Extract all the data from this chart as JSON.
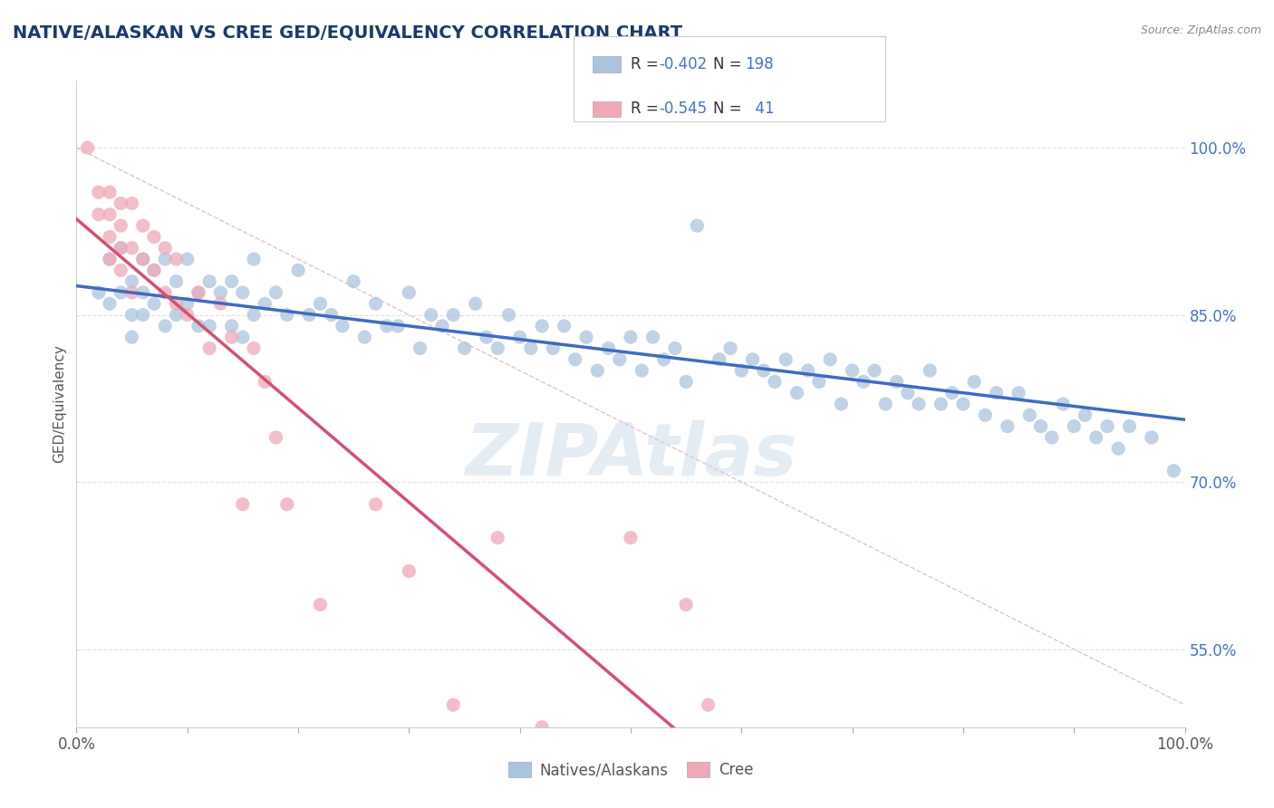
{
  "title": "NATIVE/ALASKAN VS CREE GED/EQUIVALENCY CORRELATION CHART",
  "title_color": "#1a3a6b",
  "ylabel": "GED/Equivalency",
  "source_text": "Source: ZipAtlas.com",
  "watermark": "ZIPAtlas",
  "xlim": [
    0.0,
    1.0
  ],
  "ylim": [
    0.48,
    1.06
  ],
  "y_ticks": [
    0.55,
    0.7,
    0.85,
    1.0
  ],
  "y_tick_labels": [
    "55.0%",
    "70.0%",
    "85.0%",
    "100.0%"
  ],
  "legend_r_blue": "-0.402",
  "legend_n_blue": "198",
  "legend_r_pink": "-0.545",
  "legend_n_pink": "41",
  "blue_color": "#aac4de",
  "pink_color": "#f0a8b8",
  "line_blue": "#3f6bbf",
  "line_pink": "#d45070",
  "diagonal_color": "#e0b0b8",
  "background_color": "#ffffff",
  "blue_scatter_x": [
    0.02,
    0.03,
    0.03,
    0.04,
    0.04,
    0.05,
    0.05,
    0.05,
    0.06,
    0.06,
    0.06,
    0.07,
    0.07,
    0.08,
    0.08,
    0.09,
    0.09,
    0.1,
    0.1,
    0.11,
    0.11,
    0.12,
    0.12,
    0.13,
    0.14,
    0.14,
    0.15,
    0.15,
    0.16,
    0.16,
    0.17,
    0.18,
    0.19,
    0.2,
    0.21,
    0.22,
    0.23,
    0.24,
    0.25,
    0.26,
    0.27,
    0.28,
    0.29,
    0.3,
    0.31,
    0.32,
    0.33,
    0.34,
    0.35,
    0.36,
    0.37,
    0.38,
    0.39,
    0.4,
    0.41,
    0.42,
    0.43,
    0.44,
    0.45,
    0.46,
    0.47,
    0.48,
    0.49,
    0.5,
    0.51,
    0.52,
    0.53,
    0.54,
    0.55,
    0.56,
    0.58,
    0.59,
    0.6,
    0.61,
    0.62,
    0.63,
    0.64,
    0.65,
    0.66,
    0.67,
    0.68,
    0.69,
    0.7,
    0.71,
    0.72,
    0.73,
    0.74,
    0.75,
    0.76,
    0.77,
    0.78,
    0.79,
    0.8,
    0.81,
    0.82,
    0.83,
    0.84,
    0.85,
    0.86,
    0.87,
    0.88,
    0.89,
    0.9,
    0.91,
    0.92,
    0.93,
    0.94,
    0.95,
    0.97,
    0.99
  ],
  "blue_scatter_y": [
    0.87,
    0.9,
    0.86,
    0.91,
    0.87,
    0.88,
    0.85,
    0.83,
    0.9,
    0.87,
    0.85,
    0.89,
    0.86,
    0.9,
    0.84,
    0.88,
    0.85,
    0.9,
    0.86,
    0.87,
    0.84,
    0.88,
    0.84,
    0.87,
    0.88,
    0.84,
    0.87,
    0.83,
    0.9,
    0.85,
    0.86,
    0.87,
    0.85,
    0.89,
    0.85,
    0.86,
    0.85,
    0.84,
    0.88,
    0.83,
    0.86,
    0.84,
    0.84,
    0.87,
    0.82,
    0.85,
    0.84,
    0.85,
    0.82,
    0.86,
    0.83,
    0.82,
    0.85,
    0.83,
    0.82,
    0.84,
    0.82,
    0.84,
    0.81,
    0.83,
    0.8,
    0.82,
    0.81,
    0.83,
    0.8,
    0.83,
    0.81,
    0.82,
    0.79,
    0.93,
    0.81,
    0.82,
    0.8,
    0.81,
    0.8,
    0.79,
    0.81,
    0.78,
    0.8,
    0.79,
    0.81,
    0.77,
    0.8,
    0.79,
    0.8,
    0.77,
    0.79,
    0.78,
    0.77,
    0.8,
    0.77,
    0.78,
    0.77,
    0.79,
    0.76,
    0.78,
    0.75,
    0.78,
    0.76,
    0.75,
    0.74,
    0.77,
    0.75,
    0.76,
    0.74,
    0.75,
    0.73,
    0.75,
    0.74,
    0.71
  ],
  "pink_scatter_x": [
    0.01,
    0.02,
    0.02,
    0.03,
    0.03,
    0.03,
    0.03,
    0.04,
    0.04,
    0.04,
    0.04,
    0.05,
    0.05,
    0.05,
    0.06,
    0.06,
    0.07,
    0.07,
    0.08,
    0.08,
    0.09,
    0.09,
    0.1,
    0.11,
    0.12,
    0.13,
    0.14,
    0.15,
    0.16,
    0.17,
    0.18,
    0.19,
    0.22,
    0.27,
    0.3,
    0.34,
    0.38,
    0.42,
    0.5,
    0.55,
    0.57
  ],
  "pink_scatter_y": [
    1.0,
    0.96,
    0.94,
    0.96,
    0.94,
    0.92,
    0.9,
    0.95,
    0.93,
    0.91,
    0.89,
    0.95,
    0.91,
    0.87,
    0.93,
    0.9,
    0.92,
    0.89,
    0.91,
    0.87,
    0.9,
    0.86,
    0.85,
    0.87,
    0.82,
    0.86,
    0.83,
    0.68,
    0.82,
    0.79,
    0.74,
    0.68,
    0.59,
    0.68,
    0.62,
    0.5,
    0.65,
    0.48,
    0.65,
    0.59,
    0.5
  ],
  "blue_line_x": [
    0.0,
    1.0
  ],
  "blue_line_y_start": 0.876,
  "blue_line_y_end": 0.756,
  "pink_line_x": [
    0.0,
    0.55
  ],
  "pink_line_y_start": 0.936,
  "pink_line_y_end": 0.47
}
